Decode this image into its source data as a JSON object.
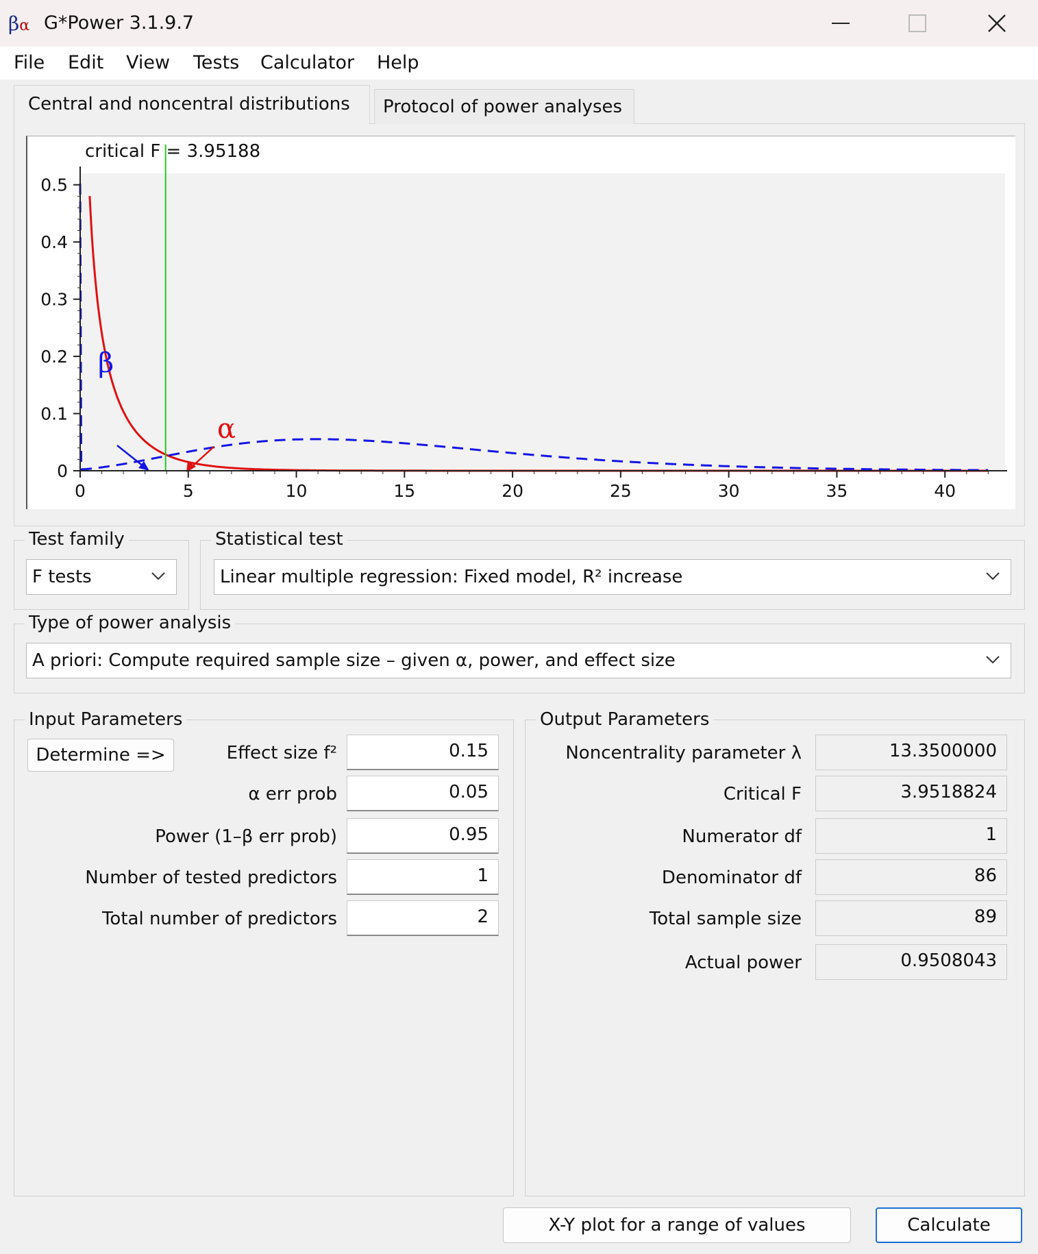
{
  "window": {
    "title": "G*Power 3.1.9.7",
    "icon_glyph": "β",
    "icon_glyph2": "α"
  },
  "menu": [
    "File",
    "Edit",
    "View",
    "Tests",
    "Calculator",
    "Help"
  ],
  "tabs": {
    "distributions": "Central and noncentral distributions",
    "protocol": "Protocol of power analyses"
  },
  "chart": {
    "critical_label": "critical F = 3.95188",
    "beta_symbol": "β",
    "alpha_symbol": "α"
  },
  "chart_data": {
    "type": "line",
    "critical_value": 3.95188,
    "xlim": [
      0,
      42
    ],
    "ylim": [
      0,
      0.52
    ],
    "x_ticks": [
      0,
      5,
      10,
      15,
      20,
      25,
      30,
      35,
      40
    ],
    "y_ticks": [
      0,
      0.1,
      0.2,
      0.3,
      0.4,
      0.5
    ],
    "y_tick_labels": [
      "0",
      "0.1",
      "0.2",
      "0.3",
      "0.4",
      "0.5"
    ],
    "series": [
      {
        "style": "solid",
        "color": "#e01010",
        "df1": 1,
        "df2": 86,
        "lambda": 0
      },
      {
        "style": "dashed",
        "color": "#1414e6",
        "df1": 1,
        "df2": 86,
        "lambda": 13.35
      }
    ],
    "colors": {
      "critical_line": "#22cc22",
      "alpha": "#e01010",
      "beta": "#1414e6"
    }
  },
  "test_family": {
    "label": "Test family",
    "value": "F tests"
  },
  "statistical_test": {
    "label": "Statistical test",
    "value": "Linear multiple regression: Fixed model, R² increase"
  },
  "power_analysis": {
    "label": "Type of power analysis",
    "value": "A priori: Compute required sample size – given α, power, and effect size"
  },
  "input": {
    "label": "Input Parameters",
    "determine_button": "Determine =>",
    "params": [
      {
        "label": "Effect size f²",
        "value": "0.15"
      },
      {
        "label": "α err prob",
        "value": "0.05"
      },
      {
        "label": "Power (1–β err prob)",
        "value": "0.95"
      },
      {
        "label": "Number of tested predictors",
        "value": "1"
      },
      {
        "label": "Total number of predictors",
        "value": "2"
      }
    ]
  },
  "output": {
    "label": "Output Parameters",
    "params": [
      {
        "label": "Noncentrality parameter λ",
        "value": "13.3500000"
      },
      {
        "label": "Critical F",
        "value": "3.9518824"
      },
      {
        "label": "Numerator df",
        "value": "1"
      },
      {
        "label": "Denominator df",
        "value": "86"
      },
      {
        "label": "Total sample size",
        "value": "89"
      },
      {
        "label": "Actual power",
        "value": "0.9508043"
      }
    ]
  },
  "buttons": {
    "xy_plot": "X-Y plot for a range of values",
    "calculate": "Calculate"
  }
}
